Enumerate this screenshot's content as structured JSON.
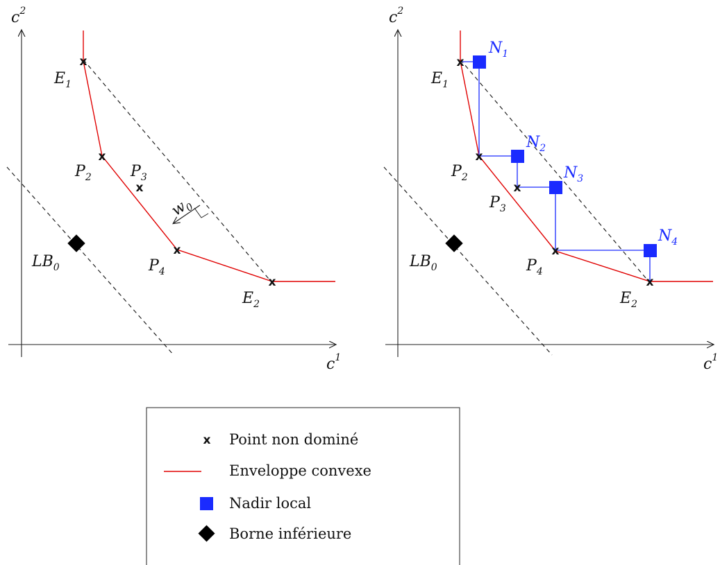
{
  "diagram": {
    "axes": {
      "x_label": "c",
      "x_sup": "1",
      "y_label": "c",
      "y_sup": "2"
    },
    "left_panel": {
      "points": [
        {
          "id": "E1",
          "label": "E",
          "sub": "1"
        },
        {
          "id": "P2",
          "label": "P",
          "sub": "2"
        },
        {
          "id": "P3",
          "label": "P",
          "sub": "3"
        },
        {
          "id": "P4",
          "label": "P",
          "sub": "4"
        },
        {
          "id": "E2",
          "label": "E",
          "sub": "2"
        }
      ],
      "lower_bound": {
        "label": "LB",
        "sub": "0"
      },
      "weight_vector": {
        "label": "w",
        "sub": "0"
      }
    },
    "right_panel": {
      "points": [
        {
          "id": "E1",
          "label": "E",
          "sub": "1"
        },
        {
          "id": "P2",
          "label": "P",
          "sub": "2"
        },
        {
          "id": "P3",
          "label": "P",
          "sub": "3"
        },
        {
          "id": "P4",
          "label": "P",
          "sub": "4"
        },
        {
          "id": "E2",
          "label": "E",
          "sub": "2"
        }
      ],
      "nadirs": [
        {
          "id": "N1",
          "label": "N",
          "sub": "1"
        },
        {
          "id": "N2",
          "label": "N",
          "sub": "2"
        },
        {
          "id": "N3",
          "label": "N",
          "sub": "3"
        },
        {
          "id": "N4",
          "label": "N",
          "sub": "4"
        }
      ],
      "lower_bound": {
        "label": "LB",
        "sub": "0"
      }
    },
    "marker_glyph": "x",
    "colors": {
      "hull": "#e00000",
      "nadir": "#1a2bff",
      "lower_bound": "#000000"
    }
  },
  "legend": {
    "items": [
      {
        "symbol": "x-mark",
        "label": "Point non dominé"
      },
      {
        "symbol": "red-line",
        "label": "Enveloppe convexe"
      },
      {
        "symbol": "blue-square",
        "label": "Nadir local"
      },
      {
        "symbol": "black-diamond",
        "label": "Borne inférieure"
      }
    ]
  }
}
